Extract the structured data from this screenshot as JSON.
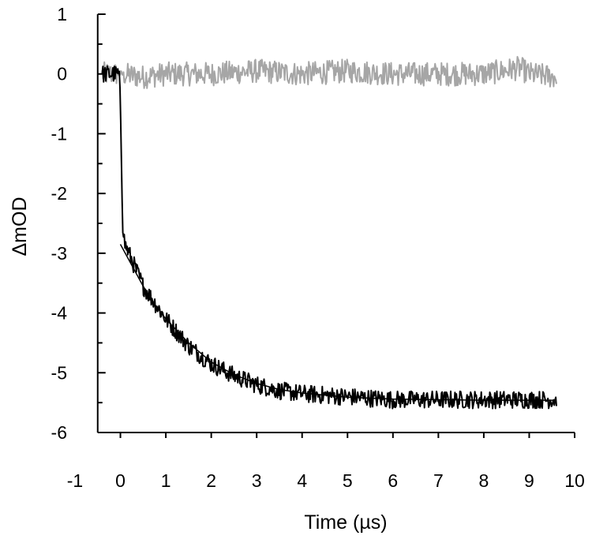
{
  "chart_data": {
    "type": "line",
    "xlabel": "Time (µs)",
    "ylabel": "ΔmOD",
    "xlim": [
      -1,
      10
    ],
    "ylim": [
      -6,
      1
    ],
    "x_ticks": [
      -1,
      0,
      1,
      2,
      3,
      4,
      5,
      6,
      7,
      8,
      9,
      10
    ],
    "y_ticks": [
      1,
      0,
      -1,
      -2,
      -3,
      -4,
      -5,
      -6
    ],
    "x_tick_labels": [
      "-1",
      "0",
      "1",
      "2",
      "3",
      "4",
      "5",
      "6",
      "7",
      "8",
      "9",
      "10"
    ],
    "y_tick_labels": [
      "1",
      "0",
      "-1",
      "-2",
      "-3",
      "-4",
      "-5",
      "-6"
    ],
    "x_axis_crosses_at_y": -6,
    "y_axis_crosses_at_x": -0.5,
    "grid": false,
    "legend": "none",
    "series": [
      {
        "style": "noisy trace",
        "color": "#a6a6a6",
        "x": [
          -0.4,
          0.0,
          0.5,
          1.0,
          2.0,
          3.0,
          4.0,
          5.0,
          6.0,
          7.0,
          8.0,
          8.8,
          9.0,
          9.6
        ],
        "y": [
          0.0,
          0.0,
          -0.05,
          0.0,
          0.0,
          0.05,
          0.0,
          0.05,
          0.0,
          0.0,
          0.0,
          0.1,
          0.0,
          -0.05
        ],
        "noise_amplitude": 0.2
      },
      {
        "style": "noisy trace",
        "color": "#000000",
        "x": [
          -0.4,
          -0.02,
          0.0,
          0.05,
          0.1,
          0.3,
          0.5,
          1.0,
          1.5,
          2.0,
          2.5,
          3.0,
          3.5,
          4.0,
          5.0,
          6.0,
          7.0,
          8.0,
          9.0,
          9.6
        ],
        "y": [
          0.0,
          0.0,
          -0.5,
          -2.6,
          -2.85,
          -3.2,
          -3.55,
          -4.1,
          -4.55,
          -4.85,
          -5.05,
          -5.2,
          -5.3,
          -5.35,
          -5.4,
          -5.45,
          -5.45,
          -5.45,
          -5.45,
          -5.45
        ],
        "noise_amplitude": 0.15
      },
      {
        "style": "fit curve",
        "color": "#000000",
        "x": [
          0.0,
          0.25,
          0.5,
          0.75,
          1.0,
          1.5,
          2.0,
          2.5,
          3.0,
          3.5,
          4.0,
          5.0,
          6.0,
          7.0,
          8.0,
          9.0,
          9.6
        ],
        "y": [
          -2.85,
          -3.2,
          -3.55,
          -3.85,
          -4.1,
          -4.5,
          -4.82,
          -5.03,
          -5.18,
          -5.28,
          -5.34,
          -5.41,
          -5.44,
          -5.45,
          -5.46,
          -5.46,
          -5.46
        ]
      }
    ]
  }
}
